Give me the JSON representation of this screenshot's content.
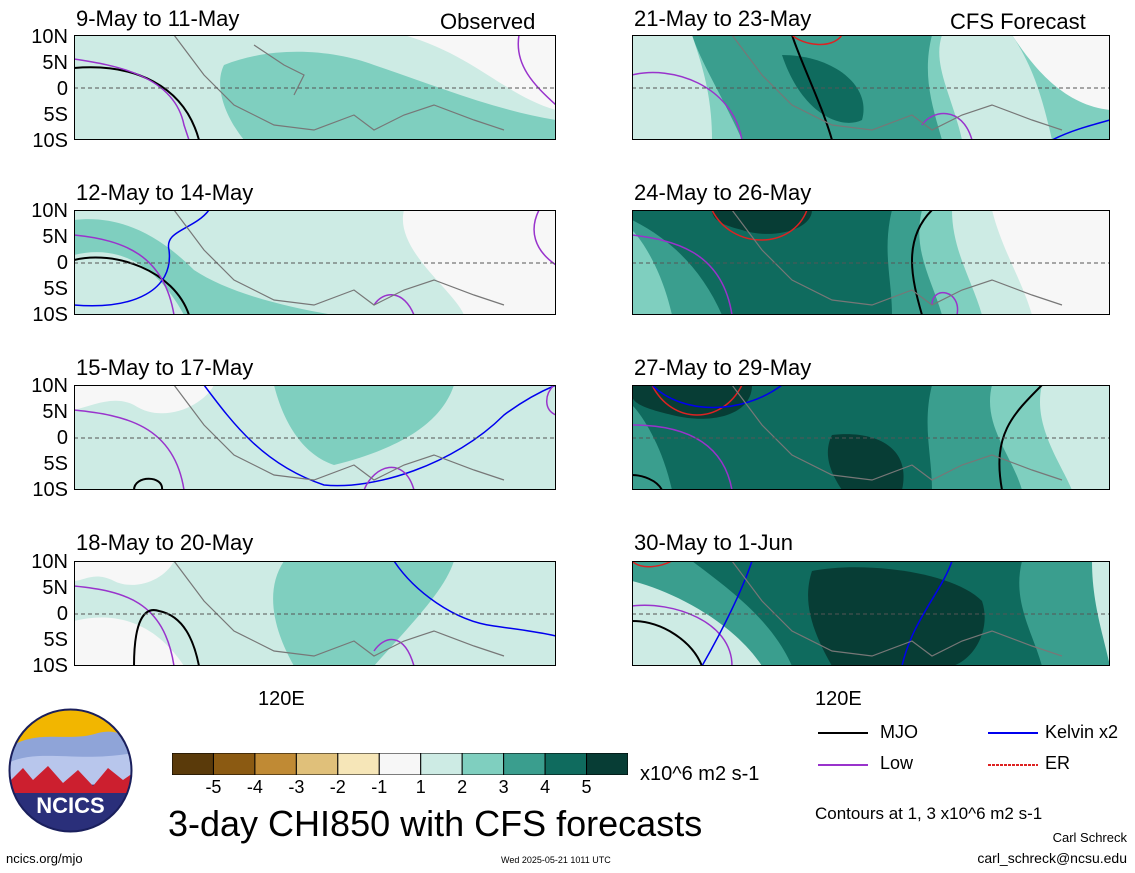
{
  "panels": [
    {
      "title": "9-May to 11-May",
      "tag": "Observed"
    },
    {
      "title": "21-May to 23-May",
      "tag": "CFS Forecast"
    },
    {
      "title": "12-May to 14-May",
      "tag": ""
    },
    {
      "title": "24-May to 26-May",
      "tag": ""
    },
    {
      "title": "15-May to 17-May",
      "tag": ""
    },
    {
      "title": "27-May to 29-May",
      "tag": ""
    },
    {
      "title": "18-May to 20-May",
      "tag": ""
    },
    {
      "title": "30-May to 1-Jun",
      "tag": ""
    }
  ],
  "y_ticks": [
    "10N",
    "5N",
    "0",
    "5S",
    "10S"
  ],
  "x_tick": "120E",
  "colorbar": {
    "labels": [
      "-5",
      "-4",
      "-3",
      "-2",
      "-1",
      "1",
      "2",
      "3",
      "4",
      "5"
    ],
    "colors": [
      "#5a3a0a",
      "#8b5a12",
      "#c08a34",
      "#e0c07a",
      "#f6e6b8",
      "#f7f7f7",
      "#cdebe4",
      "#7fcfbf",
      "#3a9e8e",
      "#0f6b5e",
      "#073d35"
    ],
    "units": "x10^6 m2 s-1"
  },
  "legend": [
    {
      "label": "MJO",
      "color": "#000000"
    },
    {
      "label": "Kelvin x2",
      "color": "#0000ee"
    },
    {
      "label": "Low",
      "color": "#9933cc"
    },
    {
      "label": "ER",
      "color": "#dd2222"
    }
  ],
  "title": "3-day CHI850 with CFS forecasts",
  "contours_note": "Contours at 1, 3 x10^6 m2 s-1",
  "author": "Carl Schreck",
  "email": "carl_schreck@ncsu.edu",
  "site": "ncics.org/mjo",
  "timestamp": "Wed 2025-05-21 1011 UTC",
  "logo_text": "NCICS"
}
